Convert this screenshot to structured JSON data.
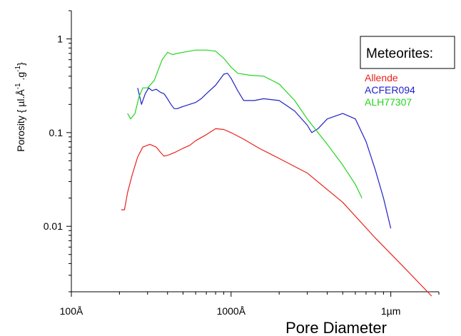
{
  "chart_data": {
    "type": "line",
    "title": "",
    "xlabel": "Pore Diameter",
    "ylabel": "Porosity { µl.Å",
    "ylabel_sup1": "-1",
    "ylabel_mid": " .g",
    "ylabel_sup2": "-1",
    "ylabel_end": "}",
    "x_scale": "log",
    "y_scale": "log",
    "xlim": [
      100,
      20000
    ],
    "ylim": [
      0.002,
      2
    ],
    "x_ticks": [
      {
        "value": 100,
        "label": "100Å"
      },
      {
        "value": 1000,
        "label": "1000Å"
      },
      {
        "value": 10000,
        "label": "1µm"
      }
    ],
    "y_ticks": [
      {
        "value": 1,
        "label": "1"
      },
      {
        "value": 0.1,
        "label": "0.1"
      },
      {
        "value": 0.01,
        "label": "0.01"
      }
    ],
    "legend": {
      "title": "Meteorites:",
      "placement": "top-right"
    },
    "series": [
      {
        "name": "Allende",
        "color": "#e8221b",
        "x": [
          205,
          215,
          225,
          240,
          260,
          280,
          310,
          340,
          360,
          380,
          410,
          450,
          500,
          550,
          600,
          700,
          800,
          900,
          1000,
          1200,
          1500,
          2000,
          3000,
          5000,
          8000,
          12000,
          18000
        ],
        "y": [
          0.015,
          0.015,
          0.023,
          0.035,
          0.055,
          0.07,
          0.075,
          0.07,
          0.062,
          0.056,
          0.058,
          0.062,
          0.068,
          0.073,
          0.082,
          0.095,
          0.11,
          0.108,
          0.1,
          0.085,
          0.068,
          0.053,
          0.037,
          0.018,
          0.0075,
          0.0037,
          0.0018
        ]
      },
      {
        "name": "ACFER094",
        "color": "#1f22c8",
        "x": [
          260,
          275,
          290,
          305,
          320,
          340,
          360,
          380,
          400,
          420,
          440,
          460,
          500,
          550,
          600,
          650,
          700,
          800,
          900,
          950,
          1000,
          1100,
          1200,
          1400,
          1600,
          2000,
          2500,
          3000,
          3200,
          3500,
          4000,
          5000,
          6000,
          7000,
          8000,
          9000,
          10000
        ],
        "y": [
          0.3,
          0.2,
          0.26,
          0.3,
          0.28,
          0.29,
          0.27,
          0.26,
          0.23,
          0.2,
          0.18,
          0.18,
          0.19,
          0.2,
          0.21,
          0.23,
          0.26,
          0.32,
          0.42,
          0.43,
          0.38,
          0.28,
          0.22,
          0.22,
          0.23,
          0.22,
          0.17,
          0.12,
          0.1,
          0.11,
          0.14,
          0.16,
          0.14,
          0.08,
          0.04,
          0.02,
          0.0095
        ]
      },
      {
        "name": "ALH77307",
        "color": "#22d41e",
        "x": [
          225,
          235,
          250,
          265,
          280,
          300,
          330,
          370,
          400,
          430,
          460,
          500,
          600,
          700,
          800,
          900,
          1000,
          1100,
          1300,
          1600,
          2000,
          2500,
          3000,
          3500,
          4000,
          5000,
          6000,
          6600
        ],
        "y": [
          0.16,
          0.14,
          0.16,
          0.24,
          0.3,
          0.3,
          0.36,
          0.6,
          0.72,
          0.68,
          0.7,
          0.72,
          0.76,
          0.76,
          0.74,
          0.62,
          0.5,
          0.43,
          0.41,
          0.4,
          0.33,
          0.22,
          0.14,
          0.1,
          0.075,
          0.045,
          0.028,
          0.02
        ]
      }
    ]
  }
}
